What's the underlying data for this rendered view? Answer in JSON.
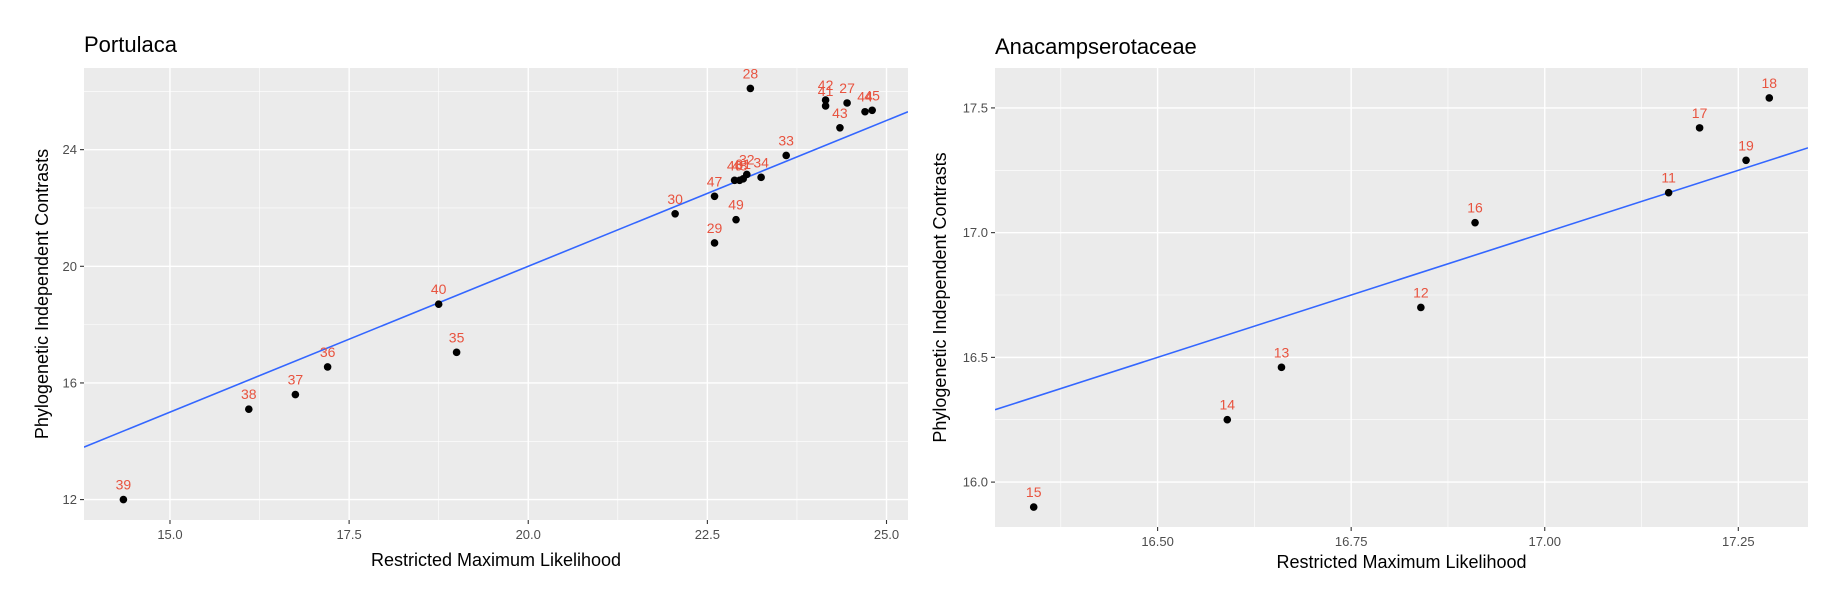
{
  "chart_data": [
    {
      "type": "scatter",
      "title": "Portulaca",
      "xlabel": "Restricted Maximum Likelihood",
      "ylabel": "Phylogenetic Independent Contrasts",
      "xlim": [
        13.8,
        25.3
      ],
      "ylim": [
        11.3,
        26.8
      ],
      "x_ticks": [
        15.0,
        17.5,
        20.0,
        22.5,
        25.0
      ],
      "x_tick_labels": [
        "15.0",
        "17.5",
        "20.0",
        "22.5",
        "25.0"
      ],
      "y_ticks": [
        12,
        16,
        20,
        24
      ],
      "y_tick_labels": [
        "12",
        "16",
        "20",
        "24"
      ],
      "grid": true,
      "point_color": "#000000",
      "label_color": "#e8533f",
      "line_color": "#3366ff",
      "fit_line": {
        "x": [
          13.8,
          25.3
        ],
        "y": [
          13.8,
          25.3
        ]
      },
      "points": [
        {
          "label": "39",
          "x": 14.35,
          "y": 12.0
        },
        {
          "label": "38",
          "x": 16.1,
          "y": 15.1
        },
        {
          "label": "37",
          "x": 16.75,
          "y": 15.6
        },
        {
          "label": "36",
          "x": 17.2,
          "y": 16.55
        },
        {
          "label": "40",
          "x": 18.75,
          "y": 18.7
        },
        {
          "label": "35",
          "x": 19.0,
          "y": 17.05
        },
        {
          "label": "30",
          "x": 22.05,
          "y": 21.8
        },
        {
          "label": "29",
          "x": 22.6,
          "y": 20.8
        },
        {
          "label": "47",
          "x": 22.6,
          "y": 22.4
        },
        {
          "label": "49",
          "x": 22.9,
          "y": 21.6
        },
        {
          "label": "46",
          "x": 22.88,
          "y": 22.95
        },
        {
          "label": "48",
          "x": 22.95,
          "y": 22.95
        },
        {
          "label": "31",
          "x": 23.0,
          "y": 23.0
        },
        {
          "label": "32",
          "x": 23.05,
          "y": 23.15
        },
        {
          "label": "34",
          "x": 23.25,
          "y": 23.05
        },
        {
          "label": "33",
          "x": 23.6,
          "y": 23.8
        },
        {
          "label": "28",
          "x": 23.1,
          "y": 26.1
        },
        {
          "label": "42",
          "x": 24.15,
          "y": 25.7
        },
        {
          "label": "41",
          "x": 24.15,
          "y": 25.5
        },
        {
          "label": "27",
          "x": 24.45,
          "y": 25.6
        },
        {
          "label": "43",
          "x": 24.35,
          "y": 24.75
        },
        {
          "label": "44",
          "x": 24.7,
          "y": 25.3
        },
        {
          "label": "45",
          "x": 24.8,
          "y": 25.35
        }
      ]
    },
    {
      "type": "scatter",
      "title": "Anacampserotaceae",
      "xlabel": "Restricted Maximum Likelihood",
      "ylabel": "Phylogenetic Independent Contrasts",
      "xlim": [
        16.29,
        17.34
      ],
      "ylim": [
        15.82,
        17.66
      ],
      "x_ticks": [
        16.5,
        16.75,
        17.0,
        17.25
      ],
      "x_tick_labels": [
        "16.50",
        "16.75",
        "17.00",
        "17.25"
      ],
      "y_ticks": [
        16.0,
        16.5,
        17.0,
        17.5
      ],
      "y_tick_labels": [
        "16.0",
        "16.5",
        "17.0",
        "17.5"
      ],
      "grid": true,
      "point_color": "#000000",
      "label_color": "#e8533f",
      "line_color": "#3366ff",
      "fit_line": {
        "x": [
          16.29,
          17.34
        ],
        "y": [
          16.29,
          17.34
        ]
      },
      "points": [
        {
          "label": "15",
          "x": 16.34,
          "y": 15.9
        },
        {
          "label": "14",
          "x": 16.59,
          "y": 16.25
        },
        {
          "label": "13",
          "x": 16.66,
          "y": 16.46
        },
        {
          "label": "12",
          "x": 16.84,
          "y": 16.7
        },
        {
          "label": "16",
          "x": 16.91,
          "y": 17.04
        },
        {
          "label": "11",
          "x": 17.16,
          "y": 17.16
        },
        {
          "label": "17",
          "x": 17.2,
          "y": 17.42
        },
        {
          "label": "19",
          "x": 17.26,
          "y": 17.29
        },
        {
          "label": "18",
          "x": 17.29,
          "y": 17.54
        }
      ]
    }
  ]
}
